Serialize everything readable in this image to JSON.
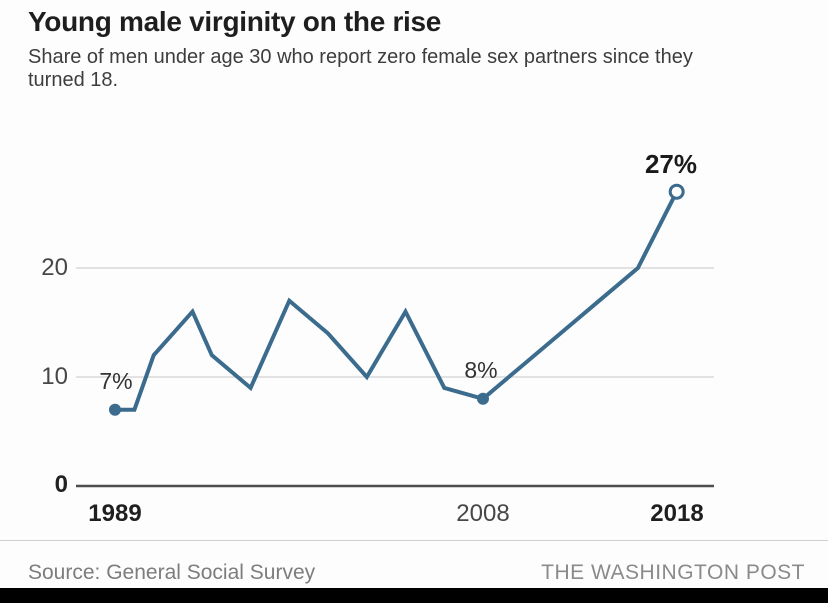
{
  "header": {
    "title": "Young male virginity on the rise",
    "subtitle": "Share of men under age 30 who report zero female sex partners since they turned 18."
  },
  "chart_data": {
    "type": "line",
    "title": "Young male virginity on the rise",
    "x": [
      1989,
      1990,
      1991,
      1993,
      1994,
      1996,
      1998,
      2000,
      2002,
      2004,
      2006,
      2008,
      2010,
      2012,
      2014,
      2016,
      2018
    ],
    "values": [
      7,
      7,
      12,
      16,
      12,
      9,
      17,
      14,
      10,
      16,
      9,
      8,
      11,
      14,
      17,
      20,
      27
    ],
    "series_name": "Share of men under 30 reporting zero female sex partners since age 18 (%)",
    "xlabel": "",
    "ylabel": "",
    "ylim": [
      0,
      30
    ],
    "xlim": [
      1989,
      2018
    ],
    "grid": "horizontal",
    "legend": "none",
    "yticks": [
      {
        "label": "0",
        "value": 0,
        "bold": true
      },
      {
        "label": "10",
        "value": 10,
        "bold": false
      },
      {
        "label": "20",
        "value": 20,
        "bold": false
      }
    ],
    "xticks": [
      {
        "label": "1989",
        "value": 1989,
        "bold": true
      },
      {
        "label": "2008",
        "value": 2008,
        "bold": false
      },
      {
        "label": "2018",
        "value": 2018,
        "bold": true
      }
    ],
    "annotations": [
      {
        "x": 1989,
        "y": 7,
        "label": "7%",
        "marker": "filled-dot"
      },
      {
        "x": 2008,
        "y": 8,
        "label": "8%",
        "marker": "filled-dot"
      },
      {
        "x": 2018,
        "y": 27,
        "label": "27%",
        "marker": "open-circle"
      }
    ],
    "colors": {
      "line": "#3b6b8d",
      "grid": "#d9d9d9",
      "axis": "#4d4d4d",
      "marker_fill": "#3b6b8d",
      "open_marker_fill": "#ffffff"
    }
  },
  "footer": {
    "source": "Source: General Social Survey",
    "attribution": "THE WASHINGTON POST"
  }
}
